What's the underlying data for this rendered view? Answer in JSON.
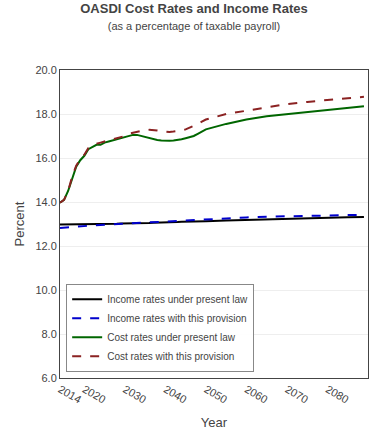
{
  "chart_data": {
    "type": "line",
    "title": "OASDI Cost Rates and Income Rates",
    "subtitle": "(as a percentage of taxable payroll)",
    "xlabel": "Year",
    "ylabel": "Percent",
    "xlim": [
      2014,
      2090
    ],
    "xticks": [
      2014,
      2020,
      2030,
      2040,
      2050,
      2060,
      2070,
      2080
    ],
    "ylim": [
      6.0,
      20.0
    ],
    "yticks": [
      {
        "value": 6.0,
        "label": "6.0"
      },
      {
        "value": 8.0,
        "label": "8.0"
      },
      {
        "value": 10.0,
        "label": "10.0"
      },
      {
        "value": 12.0,
        "label": "12.0"
      },
      {
        "value": 14.0,
        "label": "14.0"
      },
      {
        "value": 16.0,
        "label": "16.0"
      },
      {
        "value": 18.0,
        "label": "18.0"
      },
      {
        "value": 20.0,
        "label": "20.0"
      }
    ],
    "grid": "y",
    "legend": "lower left",
    "x": [
      2014,
      2015,
      2016,
      2017,
      2018,
      2019,
      2020,
      2021,
      2022,
      2023,
      2024,
      2025,
      2026,
      2027,
      2028,
      2029,
      2030,
      2031,
      2032,
      2033,
      2034,
      2035,
      2036,
      2037,
      2038,
      2039,
      2040,
      2041,
      2042,
      2043,
      2044,
      2045,
      2046,
      2047,
      2048,
      2049,
      2050,
      2055,
      2060,
      2065,
      2070,
      2075,
      2080,
      2085,
      2089
    ],
    "series": [
      {
        "name": "Income rates under present law",
        "color": "#000000",
        "line_style": "solid",
        "values": [
          12.98,
          12.98,
          12.98,
          12.98,
          12.99,
          12.99,
          12.99,
          12.99,
          13.0,
          13.0,
          13.0,
          13.0,
          13.01,
          13.01,
          13.01,
          13.02,
          13.02,
          13.03,
          13.03,
          13.04,
          13.04,
          13.05,
          13.05,
          13.06,
          13.06,
          13.07,
          13.07,
          13.08,
          13.09,
          13.09,
          13.1,
          13.1,
          13.11,
          13.12,
          13.12,
          13.13,
          13.13,
          13.16,
          13.19,
          13.22,
          13.25,
          13.27,
          13.29,
          13.31,
          13.32
        ]
      },
      {
        "name": "Income rates with this provision",
        "color": "#0000cc",
        "line_style": "dashed",
        "values": [
          12.82,
          12.83,
          12.85,
          12.87,
          12.89,
          12.9,
          12.91,
          12.92,
          12.94,
          12.95,
          12.96,
          12.97,
          12.98,
          12.99,
          13.0,
          13.01,
          13.02,
          13.03,
          13.04,
          13.05,
          13.06,
          13.07,
          13.08,
          13.09,
          13.1,
          13.11,
          13.12,
          13.13,
          13.14,
          13.15,
          13.16,
          13.17,
          13.18,
          13.19,
          13.2,
          13.21,
          13.22,
          13.27,
          13.3,
          13.33,
          13.35,
          13.37,
          13.39,
          13.41,
          13.42
        ]
      },
      {
        "name": "Cost rates under present law",
        "color": "#006600",
        "line_style": "solid",
        "values": [
          13.97,
          14.1,
          14.5,
          15.1,
          15.6,
          15.9,
          16.1,
          16.4,
          16.5,
          16.6,
          16.6,
          16.7,
          16.75,
          16.8,
          16.85,
          16.9,
          16.95,
          17.0,
          17.05,
          17.05,
          17.0,
          16.95,
          16.9,
          16.85,
          16.82,
          16.8,
          16.78,
          16.78,
          16.8,
          16.82,
          16.85,
          16.9,
          16.95,
          17.0,
          17.1,
          17.2,
          17.3,
          17.55,
          17.75,
          17.9,
          18.0,
          18.1,
          18.2,
          18.28,
          18.35
        ]
      },
      {
        "name": "Cost rates with this provision",
        "color": "#8b2222",
        "line_style": "dashed",
        "values": [
          13.97,
          14.1,
          14.5,
          15.15,
          15.65,
          15.95,
          16.15,
          16.45,
          16.55,
          16.65,
          16.7,
          16.75,
          16.8,
          16.85,
          16.9,
          16.95,
          17.0,
          17.1,
          17.15,
          17.2,
          17.25,
          17.27,
          17.28,
          17.28,
          17.25,
          17.22,
          17.2,
          17.18,
          17.2,
          17.22,
          17.25,
          17.3,
          17.38,
          17.45,
          17.55,
          17.65,
          17.75,
          18.0,
          18.15,
          18.3,
          18.45,
          18.55,
          18.65,
          18.72,
          18.78
        ]
      }
    ]
  }
}
